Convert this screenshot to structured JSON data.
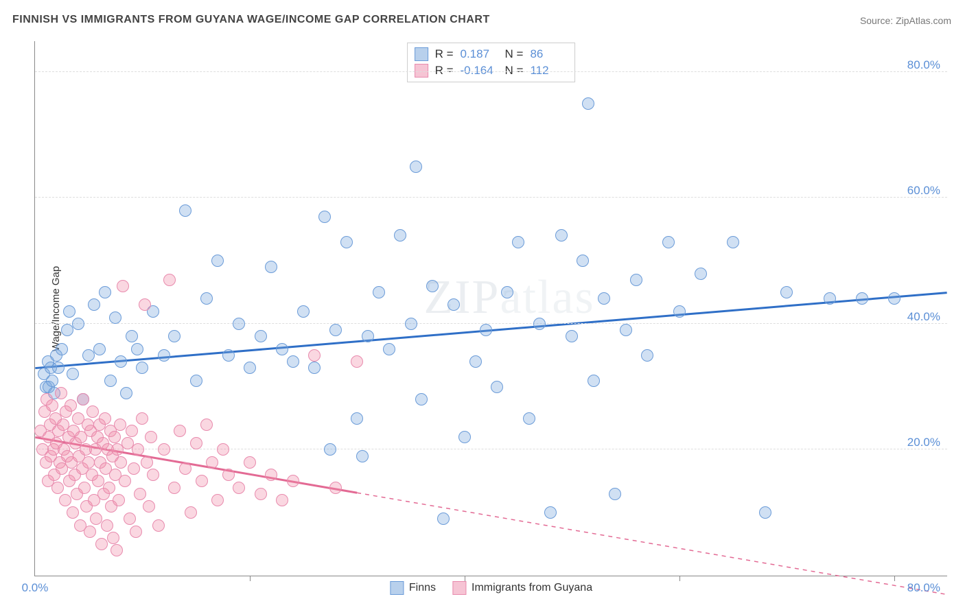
{
  "title": "FINNISH VS IMMIGRANTS FROM GUYANA WAGE/INCOME GAP CORRELATION CHART",
  "source_label": "Source: ",
  "source_name": "ZipAtlas.com",
  "watermark_a": "ZIP",
  "watermark_b": "atlas",
  "y_axis_title": "Wage/Income Gap",
  "chart": {
    "type": "scatter",
    "xlim": [
      0,
      85
    ],
    "ylim": [
      0,
      85
    ],
    "x_origin_label": "0.0%",
    "x_max_label": "80.0%",
    "x_ticks_at": [
      20,
      40,
      60,
      80
    ],
    "y_ticks": [
      {
        "v": 20,
        "label": "20.0%"
      },
      {
        "v": 40,
        "label": "40.0%"
      },
      {
        "v": 60,
        "label": "60.0%"
      },
      {
        "v": 80,
        "label": "80.0%"
      }
    ],
    "grid_color": "#dddddd",
    "axis_color": "#888888",
    "background_color": "#ffffff",
    "label_color": "#5b8fd6",
    "marker_radius": 9,
    "marker_border_width": 1.5,
    "series": [
      {
        "name": "Finns",
        "legend_label": "Finns",
        "fill_color": "rgba(120,165,220,0.35)",
        "stroke_color": "#6a9bd8",
        "swatch_fill": "#b8d0ec",
        "swatch_border": "#6a9bd8",
        "trend": {
          "x1": 0,
          "y1": 33,
          "x2": 85,
          "y2": 45,
          "color": "#2f6fc7",
          "width": 3,
          "solid_until_x": 85
        },
        "R": "0.187",
        "N": "86",
        "points": [
          [
            0.8,
            32
          ],
          [
            1.0,
            30
          ],
          [
            1.2,
            34
          ],
          [
            1.3,
            30
          ],
          [
            1.5,
            33
          ],
          [
            1.6,
            31
          ],
          [
            1.8,
            29
          ],
          [
            2.0,
            35
          ],
          [
            2.2,
            33
          ],
          [
            2.5,
            36
          ],
          [
            3.0,
            39
          ],
          [
            3.2,
            42
          ],
          [
            3.5,
            32
          ],
          [
            4.0,
            40
          ],
          [
            4.5,
            28
          ],
          [
            5.0,
            35
          ],
          [
            5.5,
            43
          ],
          [
            6.0,
            36
          ],
          [
            6.5,
            45
          ],
          [
            7.0,
            31
          ],
          [
            7.5,
            41
          ],
          [
            8.0,
            34
          ],
          [
            8.5,
            29
          ],
          [
            9.0,
            38
          ],
          [
            9.5,
            36
          ],
          [
            10.0,
            33
          ],
          [
            11.0,
            42
          ],
          [
            12.0,
            35
          ],
          [
            13.0,
            38
          ],
          [
            14.0,
            58
          ],
          [
            15.0,
            31
          ],
          [
            16.0,
            44
          ],
          [
            17.0,
            50
          ],
          [
            18.0,
            35
          ],
          [
            19.0,
            40
          ],
          [
            20.0,
            33
          ],
          [
            21.0,
            38
          ],
          [
            22.0,
            49
          ],
          [
            23.0,
            36
          ],
          [
            24.0,
            34
          ],
          [
            25.0,
            42
          ],
          [
            26.0,
            33
          ],
          [
            27.0,
            57
          ],
          [
            27.5,
            20
          ],
          [
            28.0,
            39
          ],
          [
            29.0,
            53
          ],
          [
            30.0,
            25
          ],
          [
            30.5,
            19
          ],
          [
            31.0,
            38
          ],
          [
            32.0,
            45
          ],
          [
            33.0,
            36
          ],
          [
            34.0,
            54
          ],
          [
            35.0,
            40
          ],
          [
            35.5,
            65
          ],
          [
            36.0,
            28
          ],
          [
            37.0,
            46
          ],
          [
            38.0,
            9
          ],
          [
            39.0,
            43
          ],
          [
            40.0,
            22
          ],
          [
            41.0,
            34
          ],
          [
            42.0,
            39
          ],
          [
            43.0,
            30
          ],
          [
            44.0,
            45
          ],
          [
            45.0,
            53
          ],
          [
            46.0,
            25
          ],
          [
            47.0,
            40
          ],
          [
            48.0,
            10
          ],
          [
            49.0,
            54
          ],
          [
            50.0,
            38
          ],
          [
            51.0,
            50
          ],
          [
            51.5,
            75
          ],
          [
            52.0,
            31
          ],
          [
            53.0,
            44
          ],
          [
            54.0,
            13
          ],
          [
            55.0,
            39
          ],
          [
            56.0,
            47
          ],
          [
            57.0,
            35
          ],
          [
            59.0,
            53
          ],
          [
            60.0,
            42
          ],
          [
            62.0,
            48
          ],
          [
            65.0,
            53
          ],
          [
            68.0,
            10
          ],
          [
            70.0,
            45
          ],
          [
            74.0,
            44
          ],
          [
            77.0,
            44
          ],
          [
            80.0,
            44
          ]
        ]
      },
      {
        "name": "Immigrants from Guyana",
        "legend_label": "Immigrants from Guyana",
        "fill_color": "rgba(240,140,170,0.35)",
        "stroke_color": "#e88aad",
        "swatch_fill": "#f6c4d4",
        "swatch_border": "#e88aad",
        "trend": {
          "x1": 0,
          "y1": 22,
          "x2": 85,
          "y2": -3,
          "color": "#e36a94",
          "width": 3,
          "solid_until_x": 30
        },
        "R": "-0.164",
        "N": "112",
        "points": [
          [
            0.5,
            23
          ],
          [
            0.7,
            20
          ],
          [
            0.9,
            26
          ],
          [
            1.0,
            18
          ],
          [
            1.1,
            28
          ],
          [
            1.2,
            15
          ],
          [
            1.3,
            22
          ],
          [
            1.4,
            24
          ],
          [
            1.5,
            19
          ],
          [
            1.6,
            27
          ],
          [
            1.7,
            20
          ],
          [
            1.8,
            16
          ],
          [
            1.9,
            25
          ],
          [
            2.0,
            21
          ],
          [
            2.1,
            14
          ],
          [
            2.2,
            23
          ],
          [
            2.3,
            18
          ],
          [
            2.4,
            29
          ],
          [
            2.5,
            17
          ],
          [
            2.6,
            24
          ],
          [
            2.7,
            20
          ],
          [
            2.8,
            12
          ],
          [
            2.9,
            26
          ],
          [
            3.0,
            19
          ],
          [
            3.1,
            22
          ],
          [
            3.2,
            15
          ],
          [
            3.3,
            27
          ],
          [
            3.4,
            18
          ],
          [
            3.5,
            10
          ],
          [
            3.6,
            23
          ],
          [
            3.7,
            16
          ],
          [
            3.8,
            21
          ],
          [
            3.9,
            13
          ],
          [
            4.0,
            25
          ],
          [
            4.1,
            19
          ],
          [
            4.2,
            8
          ],
          [
            4.3,
            22
          ],
          [
            4.4,
            17
          ],
          [
            4.5,
            28
          ],
          [
            4.6,
            14
          ],
          [
            4.7,
            20
          ],
          [
            4.8,
            11
          ],
          [
            4.9,
            24
          ],
          [
            5.0,
            18
          ],
          [
            5.1,
            7
          ],
          [
            5.2,
            23
          ],
          [
            5.3,
            16
          ],
          [
            5.4,
            26
          ],
          [
            5.5,
            12
          ],
          [
            5.6,
            20
          ],
          [
            5.7,
            9
          ],
          [
            5.8,
            22
          ],
          [
            5.9,
            15
          ],
          [
            6.0,
            24
          ],
          [
            6.1,
            18
          ],
          [
            6.2,
            5
          ],
          [
            6.3,
            21
          ],
          [
            6.4,
            13
          ],
          [
            6.5,
            25
          ],
          [
            6.6,
            17
          ],
          [
            6.7,
            8
          ],
          [
            6.8,
            20
          ],
          [
            6.9,
            14
          ],
          [
            7.0,
            23
          ],
          [
            7.1,
            11
          ],
          [
            7.2,
            19
          ],
          [
            7.3,
            6
          ],
          [
            7.4,
            22
          ],
          [
            7.5,
            16
          ],
          [
            7.6,
            4
          ],
          [
            7.7,
            20
          ],
          [
            7.8,
            12
          ],
          [
            7.9,
            24
          ],
          [
            8.0,
            18
          ],
          [
            8.2,
            46
          ],
          [
            8.4,
            15
          ],
          [
            8.6,
            21
          ],
          [
            8.8,
            9
          ],
          [
            9.0,
            23
          ],
          [
            9.2,
            17
          ],
          [
            9.4,
            7
          ],
          [
            9.6,
            20
          ],
          [
            9.8,
            13
          ],
          [
            10.0,
            25
          ],
          [
            10.2,
            43
          ],
          [
            10.4,
            18
          ],
          [
            10.6,
            11
          ],
          [
            10.8,
            22
          ],
          [
            11.0,
            16
          ],
          [
            11.5,
            8
          ],
          [
            12.0,
            20
          ],
          [
            12.5,
            47
          ],
          [
            13.0,
            14
          ],
          [
            13.5,
            23
          ],
          [
            14.0,
            17
          ],
          [
            14.5,
            10
          ],
          [
            15.0,
            21
          ],
          [
            15.5,
            15
          ],
          [
            16.0,
            24
          ],
          [
            16.5,
            18
          ],
          [
            17.0,
            12
          ],
          [
            17.5,
            20
          ],
          [
            18.0,
            16
          ],
          [
            19.0,
            14
          ],
          [
            20.0,
            18
          ],
          [
            21.0,
            13
          ],
          [
            22.0,
            16
          ],
          [
            23.0,
            12
          ],
          [
            24.0,
            15
          ],
          [
            26.0,
            35
          ],
          [
            28.0,
            14
          ],
          [
            30.0,
            34
          ]
        ]
      }
    ]
  },
  "stats_box": {
    "R_label": "R  =",
    "N_label": "N  ="
  }
}
